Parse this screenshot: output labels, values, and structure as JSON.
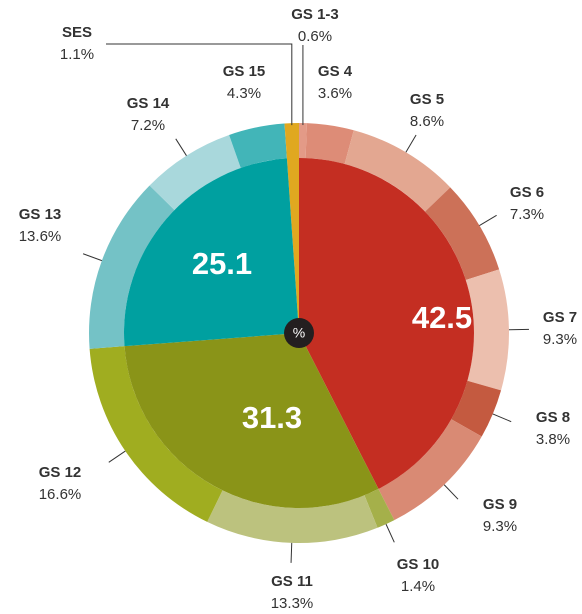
{
  "chart_data": {
    "type": "sunburst",
    "center_label": "%",
    "inner": {
      "values": [
        42.5,
        31.3,
        25.1
      ],
      "colors": [
        "#c42e22",
        "#8a9418",
        "#00a0a0"
      ]
    },
    "outer": [
      {
        "name": "GS 1-3",
        "value": 0.6,
        "value_label": "0.6%",
        "color": "#e39a87"
      },
      {
        "name": "GS 4",
        "value": 3.6,
        "value_label": "3.6%",
        "color": "#dd8c77"
      },
      {
        "name": "GS 5",
        "value": 8.6,
        "value_label": "8.6%",
        "color": "#e3a791"
      },
      {
        "name": "GS 6",
        "value": 7.3,
        "value_label": "7.3%",
        "color": "#cc7158"
      },
      {
        "name": "GS 7",
        "value": 9.3,
        "value_label": "9.3%",
        "color": "#ecbfae"
      },
      {
        "name": "GS 8",
        "value": 3.8,
        "value_label": "3.8%",
        "color": "#c45a40"
      },
      {
        "name": "GS 9",
        "value": 9.3,
        "value_label": "9.3%",
        "color": "#d98a74"
      },
      {
        "name": "GS 10",
        "value": 1.4,
        "value_label": "1.4%",
        "color": "#a5b04a"
      },
      {
        "name": "GS 11",
        "value": 13.3,
        "value_label": "13.3%",
        "color": "#bcc27e"
      },
      {
        "name": "GS 12",
        "value": 16.6,
        "value_label": "16.6%",
        "color": "#a0ad20"
      },
      {
        "name": "GS 13",
        "value": 13.6,
        "value_label": "13.6%",
        "color": "#74c2c6"
      },
      {
        "name": "GS 14",
        "value": 7.2,
        "value_label": "7.2%",
        "color": "#a9d8dc"
      },
      {
        "name": "GS 15",
        "value": 4.3,
        "value_label": "4.3%",
        "color": "#42b5b8"
      },
      {
        "name": "SES",
        "value": 1.1,
        "value_label": "1.1%",
        "color": "#e0a820"
      }
    ]
  }
}
